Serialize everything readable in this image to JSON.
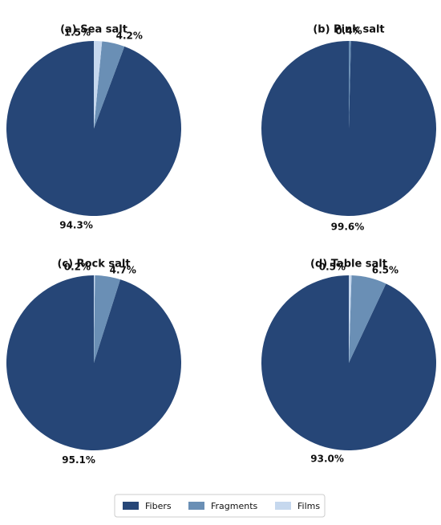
{
  "chart_data": [
    {
      "type": "pie",
      "title": "(a) Sea salt",
      "categories": [
        "Fibers",
        "Fragments",
        "Films"
      ],
      "values": [
        94.3,
        4.2,
        1.5
      ],
      "value_labels": [
        "94.3%",
        "4.2%",
        "1.5%"
      ],
      "colors": [
        "#264677",
        "#6a8fb5",
        "#c6d8ee"
      ]
    },
    {
      "type": "pie",
      "title": "(b) Pink salt",
      "categories": [
        "Fibers",
        "Fragments"
      ],
      "values": [
        99.6,
        0.4
      ],
      "value_labels": [
        "99.6%",
        "0.4%"
      ],
      "colors": [
        "#264677",
        "#6a8fb5"
      ]
    },
    {
      "type": "pie",
      "title": "(c) Rock salt",
      "categories": [
        "Fibers",
        "Fragments",
        "Films"
      ],
      "values": [
        95.1,
        4.7,
        0.2
      ],
      "value_labels": [
        "95.1%",
        "4.7%",
        "0.2%"
      ],
      "colors": [
        "#264677",
        "#6a8fb5",
        "#c6d8ee"
      ]
    },
    {
      "type": "pie",
      "title": "(d) Table salt",
      "categories": [
        "Fibers",
        "Fragments",
        "Films"
      ],
      "values": [
        93.0,
        6.5,
        0.5
      ],
      "value_labels": [
        "93.0%",
        "6.5%",
        "0.5%"
      ],
      "colors": [
        "#264677",
        "#6a8fb5",
        "#c6d8ee"
      ]
    }
  ]
}
